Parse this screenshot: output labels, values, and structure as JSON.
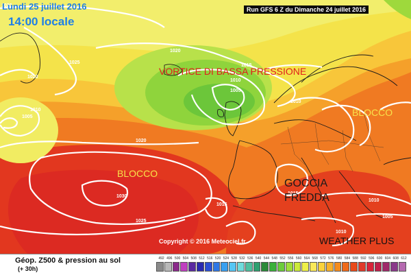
{
  "header": {
    "date_label": "Lundi 25 juillet 2016",
    "time_label": "14:00 locale",
    "run_label": "Run GFS 6 Z du Dimanche 24 juillet 2016"
  },
  "annotations": {
    "vortice": "VORTICE DI BASSA  PRESSIONE",
    "blocco_west": "BLOCCO",
    "blocco_east": "BLOCCO",
    "goccia_line1": "GOCCIA",
    "goccia_line2": "FREDDA",
    "watermark": "WEATHER PLUS"
  },
  "copyright": "Copyright © 2016 Meteociel.fr",
  "isobar_labels": [
    "1020",
    "1025",
    "1020",
    "1015",
    "1010",
    "1005",
    "1010",
    "1005",
    "1020",
    "1030",
    "1025",
    "1015",
    "1015",
    "1010",
    "1010",
    "1005",
    "1010",
    "1020"
  ],
  "legend": {
    "title": "Géop. Z500 & pression au sol",
    "subtitle": "(+ 30h)",
    "scale_values": [
      "492",
      "496",
      "500",
      "504",
      "508",
      "512",
      "516",
      "520",
      "524",
      "528",
      "532",
      "536",
      "540",
      "544",
      "548",
      "552",
      "556",
      "560",
      "564",
      "568",
      "572",
      "576",
      "580",
      "584",
      "588",
      "592",
      "596",
      "600",
      "604",
      "608",
      "612"
    ],
    "scale_colors": [
      "#8a8a8a",
      "#b9b9b9",
      "#8a2a8a",
      "#c03fc0",
      "#5a2aa0",
      "#2a2ab0",
      "#2b4fd6",
      "#2f78e6",
      "#3aa0f0",
      "#56c6f4",
      "#6fdcdc",
      "#4ec0a0",
      "#2ea070",
      "#2b8a3a",
      "#3bb03b",
      "#6ccc3c",
      "#9ede3a",
      "#ccea3a",
      "#eef04a",
      "#fbe85a",
      "#fbd23c",
      "#f8b02a",
      "#f48c1e",
      "#ef6a1a",
      "#e84a1a",
      "#e03a2a",
      "#d8243a",
      "#c0204a",
      "#a02a6a",
      "#8a3a8a",
      "#b56ab0"
    ]
  }
}
